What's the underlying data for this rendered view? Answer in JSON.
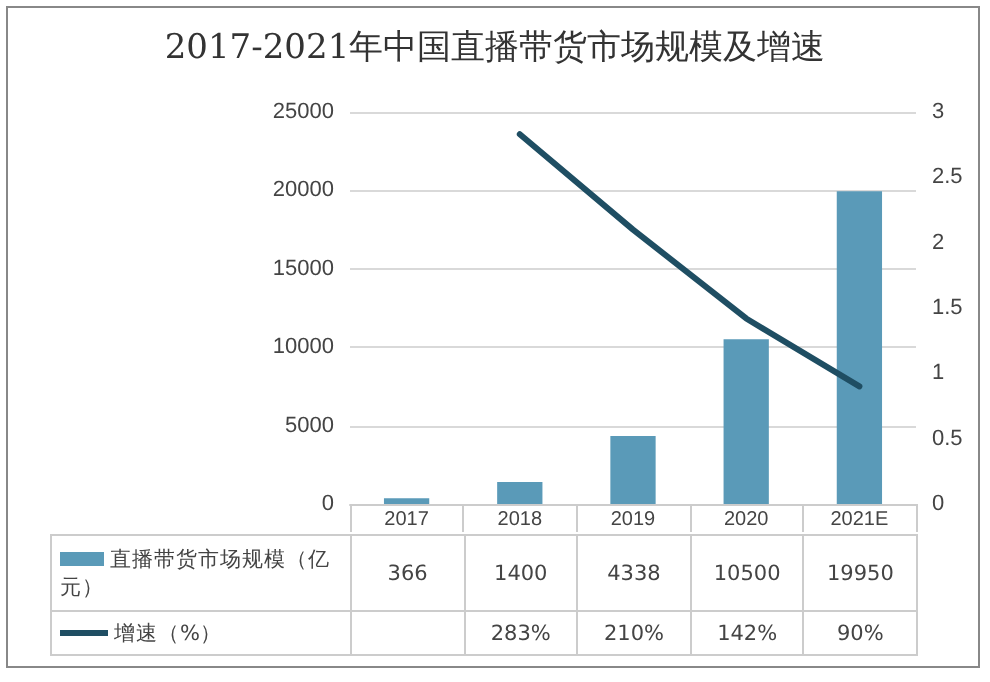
{
  "chart_data": {
    "type": "bar",
    "title": "2017-2021年中国直播带货市场规模及增速",
    "categories": [
      "2017",
      "2018",
      "2019",
      "2020",
      "2021E"
    ],
    "series": [
      {
        "name": "直播带货市场规模（亿元）",
        "color": "#5a9ab8",
        "values": [
          366,
          1400,
          4338,
          10500,
          19950
        ],
        "value_labels": [
          "366",
          "1400",
          "4338",
          "10500",
          "19950"
        ]
      },
      {
        "name": "增速（%）",
        "type": "line",
        "axis": "y2",
        "color": "#1f4e63",
        "values": [
          null,
          2.83,
          2.1,
          1.42,
          0.9
        ],
        "value_labels": [
          null,
          "283%",
          "210%",
          "142%",
          "90%"
        ]
      }
    ],
    "ylim": [
      0,
      25000
    ],
    "yticks": [
      0,
      5000,
      10000,
      15000,
      20000,
      25000
    ],
    "y2lim": [
      0,
      3
    ],
    "y2ticks": [
      0,
      0.5,
      1,
      1.5,
      2,
      2.5,
      3
    ],
    "grid": "y",
    "legend": "bottom",
    "marker": "none",
    "line_style": "solid"
  }
}
